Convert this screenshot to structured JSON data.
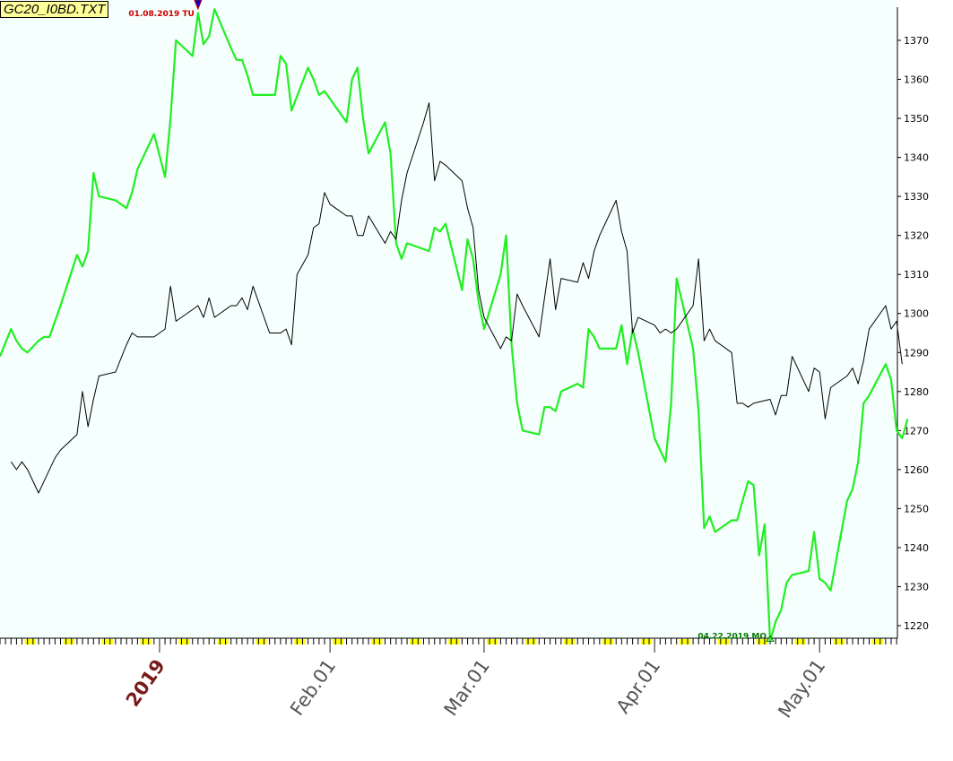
{
  "title": "GC20_I0BD.TXT",
  "colors": {
    "plot_background": "#f5fffd",
    "primary_series": "#22ee22",
    "secondary_series": "#000000",
    "high_annotation": "#cc0000",
    "low_annotation": "#007700",
    "year_label": "#7a1a1a",
    "month_label": "#555555",
    "weekend_marker": "#ffff00"
  },
  "chart_data": {
    "type": "line",
    "title": "GC20_I0BD.TXT",
    "xlabel": "",
    "ylabel": "",
    "x_range": [
      "2018-12-03",
      "2019-05-14"
    ],
    "ylim": [
      1216,
      1380
    ],
    "y_axis_side": "right",
    "y_ticks": [
      1220,
      1230,
      1240,
      1250,
      1260,
      1270,
      1280,
      1290,
      1300,
      1310,
      1320,
      1330,
      1340,
      1350,
      1360,
      1370
    ],
    "x_tick_labels": [
      {
        "date": "2019-01-01",
        "label": "2019",
        "kind": "year"
      },
      {
        "date": "2019-02-01",
        "label": "Feb.01",
        "kind": "month"
      },
      {
        "date": "2019-03-01",
        "label": "Mar.01",
        "kind": "month"
      },
      {
        "date": "2019-04-01",
        "label": "Apr.01",
        "kind": "month"
      },
      {
        "date": "2019-05-01",
        "label": "May.01",
        "kind": "month"
      }
    ],
    "annotations": [
      {
        "text": "01.08.2019 TU",
        "date": "2019-01-08",
        "value": 1378,
        "type": "high"
      },
      {
        "text": "04.22.2019 MO",
        "date": "2019-04-22",
        "value": 1216,
        "type": "low"
      }
    ],
    "grid": false,
    "series": [
      {
        "style": "thick-green",
        "points": [
          [
            "2018-12-03",
            1289
          ],
          [
            "2018-12-05",
            1296
          ],
          [
            "2018-12-06",
            1293
          ],
          [
            "2018-12-07",
            1291
          ],
          [
            "2018-12-08",
            1290
          ],
          [
            "2018-12-10",
            1293
          ],
          [
            "2018-12-11",
            1294
          ],
          [
            "2018-12-12",
            1294
          ],
          [
            "2018-12-14",
            1302
          ],
          [
            "2018-12-17",
            1315
          ],
          [
            "2018-12-18",
            1312
          ],
          [
            "2018-12-19",
            1316
          ],
          [
            "2018-12-20",
            1336
          ],
          [
            "2018-12-21",
            1330
          ],
          [
            "2018-12-24",
            1329
          ],
          [
            "2018-12-26",
            1327
          ],
          [
            "2018-12-27",
            1331
          ],
          [
            "2018-12-28",
            1337
          ],
          [
            "2018-12-31",
            1346
          ],
          [
            "2019-01-02",
            1335
          ],
          [
            "2019-01-03",
            1350
          ],
          [
            "2019-01-04",
            1370
          ],
          [
            "2019-01-07",
            1366
          ],
          [
            "2019-01-08",
            1377
          ],
          [
            "2019-01-09",
            1369
          ],
          [
            "2019-01-10",
            1371
          ],
          [
            "2019-01-11",
            1378
          ],
          [
            "2019-01-14",
            1368
          ],
          [
            "2019-01-15",
            1365
          ],
          [
            "2019-01-16",
            1365
          ],
          [
            "2019-01-17",
            1361
          ],
          [
            "2019-01-18",
            1356
          ],
          [
            "2019-01-21",
            1356
          ],
          [
            "2019-01-22",
            1356
          ],
          [
            "2019-01-23",
            1366
          ],
          [
            "2019-01-24",
            1364
          ],
          [
            "2019-01-25",
            1352
          ],
          [
            "2019-01-28",
            1363
          ],
          [
            "2019-01-29",
            1360
          ],
          [
            "2019-01-30",
            1356
          ],
          [
            "2019-01-31",
            1357
          ],
          [
            "2019-02-01",
            1355
          ],
          [
            "2019-02-04",
            1349
          ],
          [
            "2019-02-05",
            1360
          ],
          [
            "2019-02-06",
            1363
          ],
          [
            "2019-02-07",
            1350
          ],
          [
            "2019-02-08",
            1341
          ],
          [
            "2019-02-11",
            1349
          ],
          [
            "2019-02-12",
            1341
          ],
          [
            "2019-02-13",
            1318
          ],
          [
            "2019-02-14",
            1314
          ],
          [
            "2019-02-15",
            1318
          ],
          [
            "2019-02-19",
            1316
          ],
          [
            "2019-02-20",
            1322
          ],
          [
            "2019-02-21",
            1321
          ],
          [
            "2019-02-22",
            1323
          ],
          [
            "2019-02-25",
            1306
          ],
          [
            "2019-02-26",
            1319
          ],
          [
            "2019-02-27",
            1314
          ],
          [
            "2019-02-28",
            1303
          ],
          [
            "2019-03-01",
            1296
          ],
          [
            "2019-03-04",
            1310
          ],
          [
            "2019-03-05",
            1320
          ],
          [
            "2019-03-06",
            1292
          ],
          [
            "2019-03-07",
            1277
          ],
          [
            "2019-03-08",
            1270
          ],
          [
            "2019-03-11",
            1269
          ],
          [
            "2019-03-12",
            1276
          ],
          [
            "2019-03-13",
            1276
          ],
          [
            "2019-03-14",
            1275
          ],
          [
            "2019-03-15",
            1280
          ],
          [
            "2019-03-18",
            1282
          ],
          [
            "2019-03-19",
            1281
          ],
          [
            "2019-03-20",
            1296
          ],
          [
            "2019-03-21",
            1294
          ],
          [
            "2019-03-22",
            1291
          ],
          [
            "2019-03-25",
            1291
          ],
          [
            "2019-03-26",
            1297
          ],
          [
            "2019-03-27",
            1287
          ],
          [
            "2019-03-28",
            1296
          ],
          [
            "2019-03-29",
            1290
          ],
          [
            "2019-04-01",
            1268
          ],
          [
            "2019-04-02",
            1265
          ],
          [
            "2019-04-03",
            1262
          ],
          [
            "2019-04-04",
            1277
          ],
          [
            "2019-04-05",
            1309
          ],
          [
            "2019-04-08",
            1291
          ],
          [
            "2019-04-09",
            1275
          ],
          [
            "2019-04-10",
            1245
          ],
          [
            "2019-04-11",
            1248
          ],
          [
            "2019-04-12",
            1244
          ],
          [
            "2019-04-15",
            1247
          ],
          [
            "2019-04-16",
            1247
          ],
          [
            "2019-04-17",
            1252
          ],
          [
            "2019-04-18",
            1257
          ],
          [
            "2019-04-19",
            1256
          ],
          [
            "2019-04-20",
            1238
          ],
          [
            "2019-04-21",
            1246
          ],
          [
            "2019-04-22",
            1216
          ],
          [
            "2019-04-23",
            1221
          ],
          [
            "2019-04-24",
            1224
          ],
          [
            "2019-04-25",
            1231
          ],
          [
            "2019-04-26",
            1233
          ],
          [
            "2019-04-29",
            1234
          ],
          [
            "2019-04-30",
            1244
          ],
          [
            "2019-05-01",
            1232
          ],
          [
            "2019-05-02",
            1231
          ],
          [
            "2019-05-03",
            1229
          ],
          [
            "2019-05-06",
            1252
          ],
          [
            "2019-05-07",
            1255
          ],
          [
            "2019-05-08",
            1262
          ],
          [
            "2019-05-09",
            1277
          ],
          [
            "2019-05-10",
            1279
          ],
          [
            "2019-05-13",
            1287
          ],
          [
            "2019-05-14",
            1283
          ],
          [
            "2019-05-15",
            1270
          ],
          [
            "2019-05-16",
            1268
          ],
          [
            "2019-05-17",
            1273
          ]
        ]
      },
      {
        "style": "thin-black",
        "points": [
          [
            "2018-12-05",
            1262
          ],
          [
            "2018-12-06",
            1260
          ],
          [
            "2018-12-07",
            1262
          ],
          [
            "2018-12-08",
            1260
          ],
          [
            "2018-12-10",
            1254
          ],
          [
            "2018-12-11",
            1257
          ],
          [
            "2018-12-13",
            1263
          ],
          [
            "2018-12-14",
            1265
          ],
          [
            "2018-12-17",
            1269
          ],
          [
            "2018-12-18",
            1280
          ],
          [
            "2018-12-19",
            1271
          ],
          [
            "2018-12-20",
            1278
          ],
          [
            "2018-12-21",
            1284
          ],
          [
            "2018-12-24",
            1285
          ],
          [
            "2018-12-26",
            1292
          ],
          [
            "2018-12-27",
            1295
          ],
          [
            "2018-12-28",
            1294
          ],
          [
            "2018-12-31",
            1294
          ],
          [
            "2019-01-02",
            1296
          ],
          [
            "2019-01-03",
            1307
          ],
          [
            "2019-01-04",
            1298
          ],
          [
            "2019-01-07",
            1301
          ],
          [
            "2019-01-08",
            1302
          ],
          [
            "2019-01-09",
            1299
          ],
          [
            "2019-01-10",
            1304
          ],
          [
            "2019-01-11",
            1299
          ],
          [
            "2019-01-14",
            1302
          ],
          [
            "2019-01-15",
            1302
          ],
          [
            "2019-01-16",
            1304
          ],
          [
            "2019-01-17",
            1301
          ],
          [
            "2019-01-18",
            1307
          ],
          [
            "2019-01-21",
            1295
          ],
          [
            "2019-01-22",
            1295
          ],
          [
            "2019-01-23",
            1295
          ],
          [
            "2019-01-24",
            1296
          ],
          [
            "2019-01-25",
            1292
          ],
          [
            "2019-01-26",
            1310
          ],
          [
            "2019-01-28",
            1315
          ],
          [
            "2019-01-29",
            1322
          ],
          [
            "2019-01-30",
            1323
          ],
          [
            "2019-01-31",
            1331
          ],
          [
            "2019-02-01",
            1328
          ],
          [
            "2019-02-04",
            1325
          ],
          [
            "2019-02-05",
            1325
          ],
          [
            "2019-02-06",
            1320
          ],
          [
            "2019-02-07",
            1320
          ],
          [
            "2019-02-08",
            1325
          ],
          [
            "2019-02-11",
            1318
          ],
          [
            "2019-02-12",
            1321
          ],
          [
            "2019-02-13",
            1319
          ],
          [
            "2019-02-14",
            1329
          ],
          [
            "2019-02-15",
            1336
          ],
          [
            "2019-02-18",
            1349
          ],
          [
            "2019-02-19",
            1354
          ],
          [
            "2019-02-20",
            1334
          ],
          [
            "2019-02-21",
            1339
          ],
          [
            "2019-02-22",
            1338
          ],
          [
            "2019-02-25",
            1334
          ],
          [
            "2019-02-26",
            1327
          ],
          [
            "2019-02-27",
            1322
          ],
          [
            "2019-02-28",
            1306
          ],
          [
            "2019-03-01",
            1299
          ],
          [
            "2019-03-04",
            1291
          ],
          [
            "2019-03-05",
            1294
          ],
          [
            "2019-03-06",
            1293
          ],
          [
            "2019-03-07",
            1305
          ],
          [
            "2019-03-08",
            1302
          ],
          [
            "2019-03-11",
            1294
          ],
          [
            "2019-03-12",
            1304
          ],
          [
            "2019-03-13",
            1314
          ],
          [
            "2019-03-14",
            1301
          ],
          [
            "2019-03-15",
            1309
          ],
          [
            "2019-03-18",
            1308
          ],
          [
            "2019-03-19",
            1313
          ],
          [
            "2019-03-20",
            1309
          ],
          [
            "2019-03-21",
            1316
          ],
          [
            "2019-03-22",
            1320
          ],
          [
            "2019-03-25",
            1329
          ],
          [
            "2019-03-26",
            1321
          ],
          [
            "2019-03-27",
            1316
          ],
          [
            "2019-03-28",
            1295
          ],
          [
            "2019-03-29",
            1299
          ],
          [
            "2019-04-01",
            1297
          ],
          [
            "2019-04-02",
            1295
          ],
          [
            "2019-04-03",
            1296
          ],
          [
            "2019-04-04",
            1295
          ],
          [
            "2019-04-05",
            1296
          ],
          [
            "2019-04-08",
            1302
          ],
          [
            "2019-04-09",
            1314
          ],
          [
            "2019-04-10",
            1293
          ],
          [
            "2019-04-11",
            1296
          ],
          [
            "2019-04-12",
            1293
          ],
          [
            "2019-04-15",
            1290
          ],
          [
            "2019-04-16",
            1277
          ],
          [
            "2019-04-17",
            1277
          ],
          [
            "2019-04-18",
            1276
          ],
          [
            "2019-04-19",
            1277
          ],
          [
            "2019-04-22",
            1278
          ],
          [
            "2019-04-23",
            1274
          ],
          [
            "2019-04-24",
            1279
          ],
          [
            "2019-04-25",
            1279
          ],
          [
            "2019-04-26",
            1289
          ],
          [
            "2019-04-29",
            1280
          ],
          [
            "2019-04-30",
            1286
          ],
          [
            "2019-05-01",
            1285
          ],
          [
            "2019-05-02",
            1273
          ],
          [
            "2019-05-03",
            1281
          ],
          [
            "2019-05-06",
            1284
          ],
          [
            "2019-05-07",
            1286
          ],
          [
            "2019-05-08",
            1282
          ],
          [
            "2019-05-09",
            1288
          ],
          [
            "2019-05-10",
            1296
          ],
          [
            "2019-05-13",
            1302
          ],
          [
            "2019-05-14",
            1296
          ],
          [
            "2019-05-15",
            1298
          ],
          [
            "2019-05-16",
            1287
          ]
        ]
      }
    ]
  }
}
